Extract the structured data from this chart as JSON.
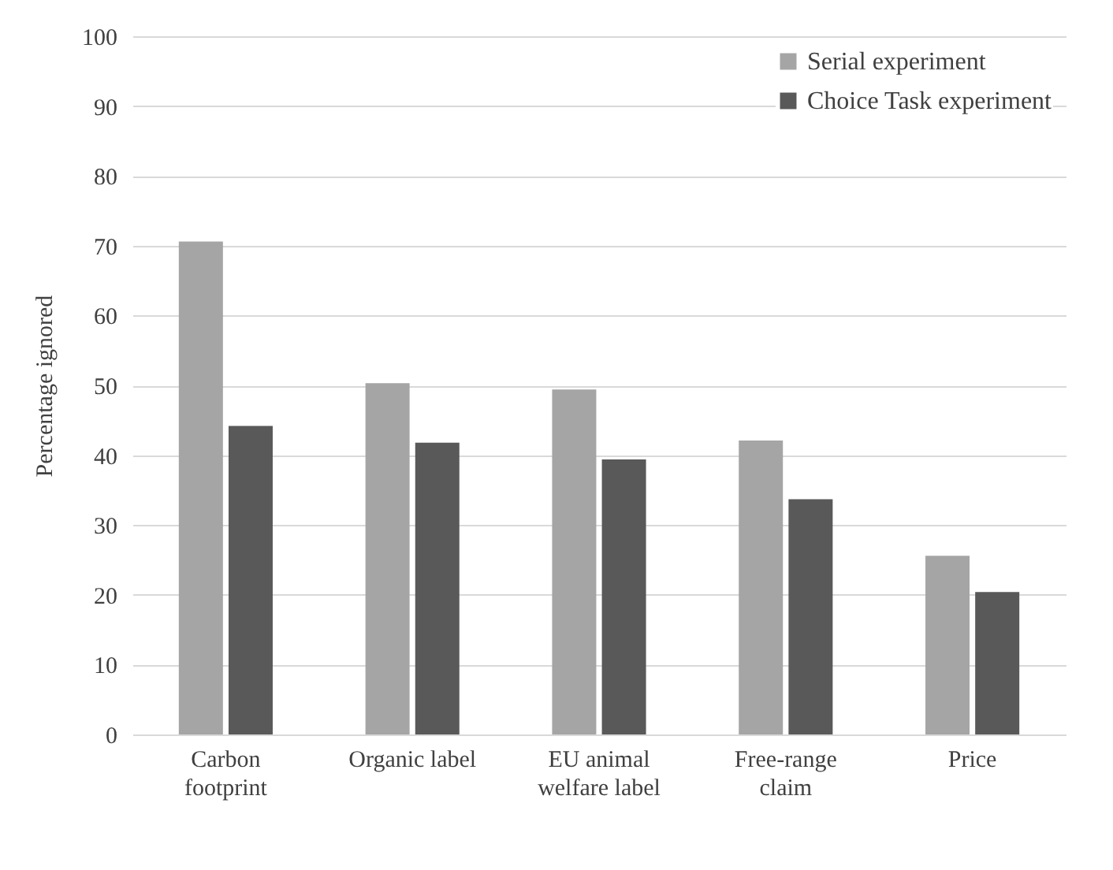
{
  "chart_data": {
    "type": "bar",
    "ylabel": "Percentage ignored",
    "categories": [
      "Carbon footprint",
      "Organic label",
      "EU animal welfare label",
      "Free-range claim",
      "Price"
    ],
    "series": [
      {
        "name": "Serial experiment",
        "color": "#a5a5a5",
        "values": [
          70.6,
          50.3,
          49.4,
          42.1,
          25.6
        ]
      },
      {
        "name": "Choice Task experiment",
        "color": "#595959",
        "values": [
          44.2,
          41.8,
          39.4,
          33.7,
          20.4
        ]
      }
    ],
    "ylim": [
      0,
      100
    ],
    "yticks": [
      0,
      10,
      20,
      30,
      40,
      50,
      60,
      70,
      80,
      90,
      100
    ],
    "grid": "y",
    "legend": "top right"
  }
}
